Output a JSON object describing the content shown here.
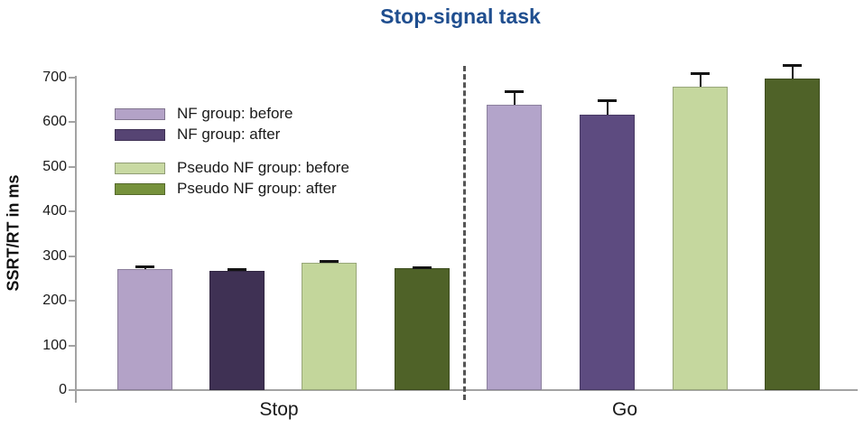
{
  "chart_data": {
    "type": "bar",
    "title": "Stop-signal task",
    "title_color": "#1f4e8f",
    "ylabel": "SSRT/RT in ms",
    "ylim": [
      0,
      700
    ],
    "yticks": [
      0,
      100,
      200,
      300,
      400,
      500,
      600,
      700
    ],
    "categories": [
      "Stop",
      "Go"
    ],
    "grid": false,
    "legend_position": "upper-left-inside",
    "group_separator": "dashed-vertical-line",
    "error_bars": "upper-only",
    "series": [
      {
        "name": "NF group: before",
        "legend_color": "#b3a2c7",
        "bar_colors": [
          "#b3a2c7",
          "#b3a4ca"
        ],
        "values": [
          272,
          640
        ],
        "errors": [
          5,
          30
        ]
      },
      {
        "name": "NF group: after",
        "legend_color": "#564473",
        "bar_colors": [
          "#3f3154",
          "#5d4b80"
        ],
        "values": [
          268,
          617
        ],
        "errors": [
          4,
          33
        ]
      },
      {
        "name": "Pseudo NF group: before",
        "legend_color": "#c8d9a2",
        "bar_colors": [
          "#c3d69b",
          "#c5d79e"
        ],
        "values": [
          286,
          679
        ],
        "errors": [
          3,
          32
        ]
      },
      {
        "name": "Pseudo NF group: after",
        "legend_color": "#76923c",
        "bar_colors": [
          "#4f6228",
          "#4f6228"
        ],
        "values": [
          274,
          698
        ],
        "errors": [
          2,
          30
        ]
      }
    ]
  }
}
